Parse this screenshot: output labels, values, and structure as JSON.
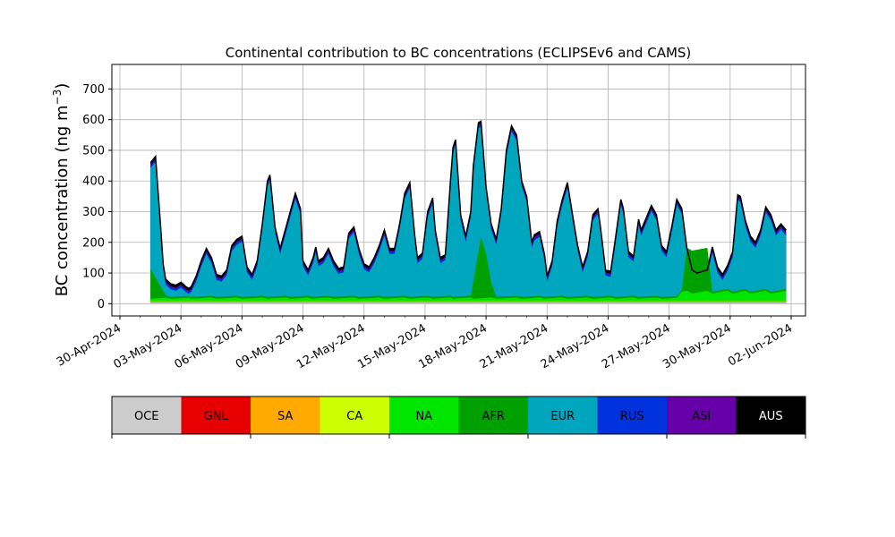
{
  "chart_data": {
    "type": "area",
    "stacked": true,
    "title": "Continental contribution to BC concentrations (ECLIPSEv6 and CAMS)",
    "ylabel": "BC concentration (ng m",
    "ylabel_sup": "−3",
    "ylabel_close": ")",
    "xlabel": "",
    "grid": true,
    "ylim": [
      -40,
      780
    ],
    "yticks": [
      0,
      100,
      200,
      300,
      400,
      500,
      600,
      700
    ],
    "xlim": [
      "2024-04-30",
      "2024-06-02"
    ],
    "xticks": [
      "2024-04-30",
      "2024-05-03",
      "2024-05-06",
      "2024-05-09",
      "2024-05-12",
      "2024-05-15",
      "2024-05-18",
      "2024-05-21",
      "2024-05-24",
      "2024-05-27",
      "2024-05-30",
      "2024-06-02"
    ],
    "xtick_labels": [
      "30-Apr-2024",
      "03-May-2024",
      "06-May-2024",
      "09-May-2024",
      "12-May-2024",
      "15-May-2024",
      "18-May-2024",
      "21-May-2024",
      "24-May-2024",
      "27-May-2024",
      "30-May-2024",
      "02-Jun-2024"
    ],
    "colors": {
      "OCE": "#cccccc",
      "GNL": "#e60000",
      "SA": "#ffaa00",
      "CA": "#ccff00",
      "NA": "#00e600",
      "AFR": "#00a000",
      "EUR": "#00a6bd",
      "RUS": "#0033dd",
      "ASI": "#6600a8",
      "AUS": "#000000"
    },
    "legend": [
      "OCE",
      "GNL",
      "SA",
      "CA",
      "NA",
      "AFR",
      "EUR",
      "RUS",
      "ASI",
      "AUS"
    ],
    "legend_text_colors": {
      "OCE": "#000000",
      "GNL": "#000000",
      "SA": "#000000",
      "CA": "#000000",
      "NA": "#000000",
      "AFR": "#000000",
      "EUR": "#000000",
      "RUS": "#000000",
      "ASI": "#000000",
      "AUS": "#ffffff"
    },
    "legend_placement": "bottom",
    "series_order": [
      "OCE",
      "GNL",
      "SA",
      "CA",
      "NA",
      "AFR",
      "EUR",
      "RUS",
      "ASI",
      "AUS"
    ],
    "total": [
      [
        "2024-05-01 12:00",
        460
      ],
      [
        "2024-05-01 18:00",
        480
      ],
      [
        "2024-05-02 00:00",
        250
      ],
      [
        "2024-05-02 03:00",
        130
      ],
      [
        "2024-05-02 06:00",
        80
      ],
      [
        "2024-05-02 12:00",
        65
      ],
      [
        "2024-05-02 18:00",
        60
      ],
      [
        "2024-05-03 00:00",
        70
      ],
      [
        "2024-05-03 06:00",
        55
      ],
      [
        "2024-05-03 09:00",
        50
      ],
      [
        "2024-05-03 12:00",
        55
      ],
      [
        "2024-05-03 18:00",
        90
      ],
      [
        "2024-05-04 00:00",
        140
      ],
      [
        "2024-05-04 06:00",
        180
      ],
      [
        "2024-05-04 12:00",
        150
      ],
      [
        "2024-05-04 18:00",
        95
      ],
      [
        "2024-05-05 00:00",
        90
      ],
      [
        "2024-05-05 06:00",
        110
      ],
      [
        "2024-05-05 12:00",
        190
      ],
      [
        "2024-05-05 18:00",
        210
      ],
      [
        "2024-05-06 00:00",
        220
      ],
      [
        "2024-05-06 06:00",
        120
      ],
      [
        "2024-05-06 12:00",
        95
      ],
      [
        "2024-05-06 18:00",
        140
      ],
      [
        "2024-05-07 00:00",
        260
      ],
      [
        "2024-05-07 06:00",
        400
      ],
      [
        "2024-05-07 09:00",
        420
      ],
      [
        "2024-05-07 15:00",
        250
      ],
      [
        "2024-05-07 21:00",
        180
      ],
      [
        "2024-05-08 03:00",
        240
      ],
      [
        "2024-05-08 09:00",
        300
      ],
      [
        "2024-05-08 15:00",
        360
      ],
      [
        "2024-05-08 21:00",
        310
      ],
      [
        "2024-05-09 00:00",
        140
      ],
      [
        "2024-05-09 06:00",
        110
      ],
      [
        "2024-05-09 12:00",
        150
      ],
      [
        "2024-05-09 15:00",
        185
      ],
      [
        "2024-05-09 18:00",
        140
      ],
      [
        "2024-05-10 00:00",
        150
      ],
      [
        "2024-05-10 06:00",
        180
      ],
      [
        "2024-05-10 12:00",
        140
      ],
      [
        "2024-05-10 18:00",
        115
      ],
      [
        "2024-05-11 00:00",
        120
      ],
      [
        "2024-05-11 06:00",
        230
      ],
      [
        "2024-05-11 12:00",
        250
      ],
      [
        "2024-05-11 18:00",
        180
      ],
      [
        "2024-05-12 00:00",
        130
      ],
      [
        "2024-05-12 06:00",
        120
      ],
      [
        "2024-05-12 12:00",
        150
      ],
      [
        "2024-05-12 18:00",
        190
      ],
      [
        "2024-05-13 00:00",
        240
      ],
      [
        "2024-05-13 06:00",
        180
      ],
      [
        "2024-05-13 12:00",
        180
      ],
      [
        "2024-05-13 18:00",
        260
      ],
      [
        "2024-05-14 00:00",
        360
      ],
      [
        "2024-05-14 06:00",
        395
      ],
      [
        "2024-05-14 12:00",
        220
      ],
      [
        "2024-05-14 15:00",
        150
      ],
      [
        "2024-05-14 21:00",
        165
      ],
      [
        "2024-05-15 03:00",
        300
      ],
      [
        "2024-05-15 09:00",
        345
      ],
      [
        "2024-05-15 12:00",
        240
      ],
      [
        "2024-05-15 18:00",
        150
      ],
      [
        "2024-05-16 00:00",
        160
      ],
      [
        "2024-05-16 06:00",
        400
      ],
      [
        "2024-05-16 09:00",
        510
      ],
      [
        "2024-05-16 12:00",
        535
      ],
      [
        "2024-05-16 18:00",
        290
      ],
      [
        "2024-05-17 00:00",
        220
      ],
      [
        "2024-05-17 06:00",
        300
      ],
      [
        "2024-05-17 09:00",
        450
      ],
      [
        "2024-05-17 15:00",
        590
      ],
      [
        "2024-05-17 18:00",
        595
      ],
      [
        "2024-05-18 00:00",
        380
      ],
      [
        "2024-05-18 06:00",
        260
      ],
      [
        "2024-05-18 12:00",
        210
      ],
      [
        "2024-05-18 18:00",
        310
      ],
      [
        "2024-05-19 00:00",
        500
      ],
      [
        "2024-05-19 06:00",
        580
      ],
      [
        "2024-05-19 12:00",
        550
      ],
      [
        "2024-05-19 18:00",
        400
      ],
      [
        "2024-05-20 00:00",
        350
      ],
      [
        "2024-05-20 06:00",
        200
      ],
      [
        "2024-05-20 09:00",
        225
      ],
      [
        "2024-05-20 15:00",
        235
      ],
      [
        "2024-05-20 21:00",
        160
      ],
      [
        "2024-05-21 00:00",
        90
      ],
      [
        "2024-05-21 06:00",
        140
      ],
      [
        "2024-05-21 12:00",
        270
      ],
      [
        "2024-05-21 18:00",
        340
      ],
      [
        "2024-05-22 00:00",
        395
      ],
      [
        "2024-05-22 06:00",
        290
      ],
      [
        "2024-05-22 12:00",
        190
      ],
      [
        "2024-05-22 18:00",
        120
      ],
      [
        "2024-05-23 00:00",
        170
      ],
      [
        "2024-05-23 06:00",
        290
      ],
      [
        "2024-05-23 12:00",
        310
      ],
      [
        "2024-05-23 15:00",
        250
      ],
      [
        "2024-05-23 21:00",
        110
      ],
      [
        "2024-05-24 03:00",
        105
      ],
      [
        "2024-05-24 09:00",
        220
      ],
      [
        "2024-05-24 15:00",
        340
      ],
      [
        "2024-05-24 18:00",
        310
      ],
      [
        "2024-05-25 00:00",
        170
      ],
      [
        "2024-05-25 06:00",
        155
      ],
      [
        "2024-05-25 12:00",
        275
      ],
      [
        "2024-05-25 15:00",
        240
      ],
      [
        "2024-05-25 21:00",
        280
      ],
      [
        "2024-05-26 03:00",
        320
      ],
      [
        "2024-05-26 09:00",
        290
      ],
      [
        "2024-05-26 15:00",
        190
      ],
      [
        "2024-05-26 21:00",
        170
      ],
      [
        "2024-05-27 03:00",
        250
      ],
      [
        "2024-05-27 09:00",
        340
      ],
      [
        "2024-05-27 15:00",
        310
      ],
      [
        "2024-05-27 21:00",
        180
      ],
      [
        "2024-05-28 03:00",
        110
      ],
      [
        "2024-05-28 09:00",
        100
      ],
      [
        "2024-05-28 15:00",
        105
      ],
      [
        "2024-05-28 21:00",
        110
      ],
      [
        "2024-05-29 03:00",
        185
      ],
      [
        "2024-05-29 09:00",
        120
      ],
      [
        "2024-05-29 15:00",
        95
      ],
      [
        "2024-05-29 21:00",
        125
      ],
      [
        "2024-05-30 03:00",
        170
      ],
      [
        "2024-05-30 09:00",
        355
      ],
      [
        "2024-05-30 12:00",
        350
      ],
      [
        "2024-05-30 18:00",
        270
      ],
      [
        "2024-05-31 00:00",
        220
      ],
      [
        "2024-05-31 06:00",
        200
      ],
      [
        "2024-05-31 12:00",
        240
      ],
      [
        "2024-05-31 18:00",
        315
      ],
      [
        "2024-06-01 00:00",
        290
      ],
      [
        "2024-06-01 06:00",
        240
      ],
      [
        "2024-06-01 12:00",
        260
      ],
      [
        "2024-06-01 18:00",
        240
      ]
    ]
  }
}
